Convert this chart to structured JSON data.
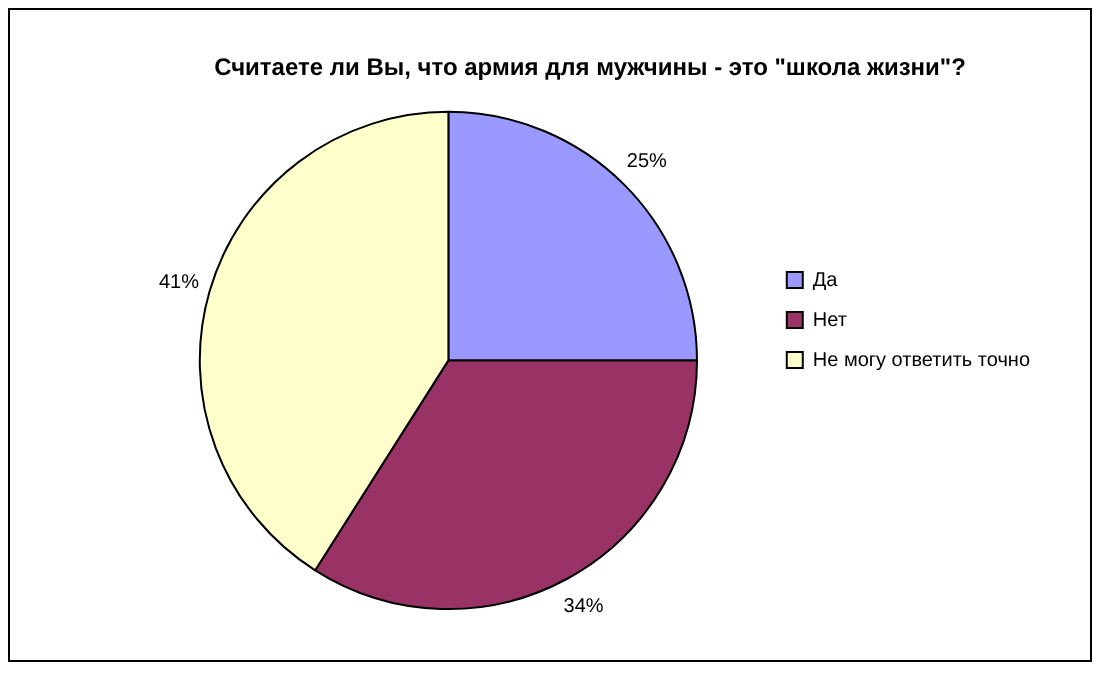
{
  "chart_data": {
    "type": "pie",
    "title": "Считаете ли Вы, что армия для мужчины - это \"школа жизни\"?",
    "categories": [
      "Да",
      "Нет",
      "Не могу ответить точно"
    ],
    "values": [
      25,
      34,
      41
    ],
    "colors": [
      "#9999ff",
      "#993366",
      "#ffffcc"
    ],
    "value_labels": [
      "25%",
      "34%",
      "41%"
    ],
    "legend": "right"
  }
}
